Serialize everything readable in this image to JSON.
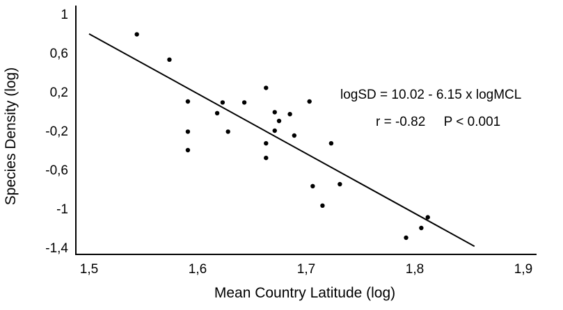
{
  "chart_data": {
    "type": "scatter",
    "title": "",
    "xlabel": "Mean Country Latitude (log)",
    "ylabel": "Species Density (log)",
    "xlim": [
      1.5,
      1.9
    ],
    "ylim": [
      -1.4,
      1.0
    ],
    "x_ticks": [
      1.5,
      1.6,
      1.7,
      1.8,
      1.9
    ],
    "x_tick_labels": [
      "1,5",
      "1,6",
      "1,7",
      "1,8",
      "1,9"
    ],
    "y_ticks": [
      1.0,
      0.6,
      0.2,
      -0.2,
      -0.6,
      -1.0,
      -1.4
    ],
    "y_tick_labels": [
      "1",
      "0,6",
      "0,2",
      "-0,2",
      "-0,6",
      "-1",
      "-1,4"
    ],
    "grid": false,
    "points": [
      {
        "x": 1.544,
        "y": 0.79
      },
      {
        "x": 1.574,
        "y": 0.53
      },
      {
        "x": 1.591,
        "y": 0.1
      },
      {
        "x": 1.591,
        "y": -0.21
      },
      {
        "x": 1.591,
        "y": -0.4
      },
      {
        "x": 1.618,
        "y": -0.02
      },
      {
        "x": 1.623,
        "y": 0.09
      },
      {
        "x": 1.628,
        "y": -0.21
      },
      {
        "x": 1.643,
        "y": 0.09
      },
      {
        "x": 1.663,
        "y": 0.24
      },
      {
        "x": 1.663,
        "y": -0.33
      },
      {
        "x": 1.663,
        "y": -0.48
      },
      {
        "x": 1.671,
        "y": -0.01
      },
      {
        "x": 1.671,
        "y": -0.2
      },
      {
        "x": 1.675,
        "y": -0.1
      },
      {
        "x": 1.685,
        "y": -0.03
      },
      {
        "x": 1.689,
        "y": -0.25
      },
      {
        "x": 1.703,
        "y": 0.1
      },
      {
        "x": 1.706,
        "y": -0.77
      },
      {
        "x": 1.715,
        "y": -0.97
      },
      {
        "x": 1.723,
        "y": -0.33
      },
      {
        "x": 1.731,
        "y": -0.75
      },
      {
        "x": 1.792,
        "y": -1.3
      },
      {
        "x": 1.806,
        "y": -1.2
      },
      {
        "x": 1.812,
        "y": -1.09
      }
    ],
    "regression_line": {
      "intercept": 10.02,
      "slope": -6.15,
      "x_start": 1.5,
      "x_end": 1.855
    },
    "annotations": {
      "equation": "logSD = 10.02 - 6.15 x logMCL",
      "stats": "r = -0.82     P < 0.001"
    }
  }
}
